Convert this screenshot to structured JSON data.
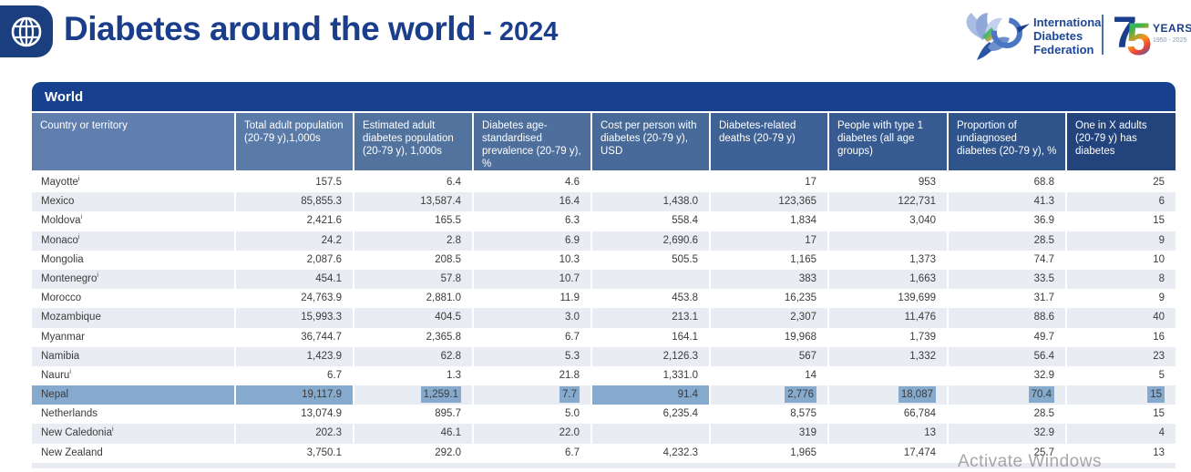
{
  "header": {
    "title": "Diabetes around the world",
    "year_suffix": "- 2024",
    "idf_logo": {
      "line1": "International",
      "line2": "Diabetes",
      "line3": "Federation"
    },
    "anniversary": {
      "number_7": "7",
      "number_5": "5",
      "label": "YEARS",
      "years": "1950 - 2025"
    }
  },
  "table": {
    "region_label": "World",
    "footnote_marker": "i",
    "columns": [
      "Country or territory",
      "Total adult population (20-79 y),1,000s",
      "Estimated adult diabetes population (20-79 y), 1,000s",
      "Diabetes age-standardised prevalence (20-79 y), %",
      "Cost per person with diabetes (20-79 y), USD",
      "Diabetes-related deaths (20-79 y)",
      "People with type 1 diabetes (all age groups)",
      "Proportion of undiagnosed diabetes (20-79 y), %",
      "One in X adults (20-79 y) has diabetes"
    ],
    "header_colors": [
      "#607fae",
      "#5a7aa8",
      "#53739f",
      "#4e6f9c",
      "#486a99",
      "#3e6295",
      "#375b90",
      "#2f548b",
      "#23437d"
    ],
    "highlight_pattern": [
      "full",
      "full",
      "text",
      "text",
      "full",
      "text",
      "text",
      "text",
      "text"
    ],
    "rows": [
      {
        "country": "Mayotte",
        "fn": true,
        "values": [
          "157.5",
          "6.4",
          "4.6",
          "",
          "17",
          "953",
          "68.8",
          "25"
        ]
      },
      {
        "country": "Mexico",
        "fn": false,
        "values": [
          "85,855.3",
          "13,587.4",
          "16.4",
          "1,438.0",
          "123,365",
          "122,731",
          "41.3",
          "6"
        ]
      },
      {
        "country": "Moldova",
        "fn": true,
        "values": [
          "2,421.6",
          "165.5",
          "6.3",
          "558.4",
          "1,834",
          "3,040",
          "36.9",
          "15"
        ]
      },
      {
        "country": "Monaco",
        "fn": true,
        "values": [
          "24.2",
          "2.8",
          "6.9",
          "2,690.6",
          "17",
          "",
          "28.5",
          "9"
        ]
      },
      {
        "country": "Mongolia",
        "fn": false,
        "values": [
          "2,087.6",
          "208.5",
          "10.3",
          "505.5",
          "1,165",
          "1,373",
          "74.7",
          "10"
        ]
      },
      {
        "country": "Montenegro",
        "fn": true,
        "values": [
          "454.1",
          "57.8",
          "10.7",
          "",
          "383",
          "1,663",
          "33.5",
          "8"
        ]
      },
      {
        "country": "Morocco",
        "fn": false,
        "values": [
          "24,763.9",
          "2,881.0",
          "11.9",
          "453.8",
          "16,235",
          "139,699",
          "31.7",
          "9"
        ]
      },
      {
        "country": "Mozambique",
        "fn": false,
        "values": [
          "15,993.3",
          "404.5",
          "3.0",
          "213.1",
          "2,307",
          "11,476",
          "88.6",
          "40"
        ]
      },
      {
        "country": "Myanmar",
        "fn": false,
        "values": [
          "36,744.7",
          "2,365.8",
          "6.7",
          "164.1",
          "19,968",
          "1,739",
          "49.7",
          "16"
        ]
      },
      {
        "country": "Namibia",
        "fn": false,
        "values": [
          "1,423.9",
          "62.8",
          "5.3",
          "2,126.3",
          "567",
          "1,332",
          "56.4",
          "23"
        ]
      },
      {
        "country": "Nauru",
        "fn": true,
        "values": [
          "6.7",
          "1.3",
          "21.8",
          "1,331.0",
          "14",
          "",
          "32.9",
          "5"
        ]
      },
      {
        "country": "Nepal",
        "fn": false,
        "highlighted": true,
        "values": [
          "19,117.9",
          "1,259.1",
          "7.7",
          "91.4",
          "2,776",
          "18,087",
          "70.4",
          "15"
        ]
      },
      {
        "country": "Netherlands",
        "fn": false,
        "values": [
          "13,074.9",
          "895.7",
          "5.0",
          "6,235.4",
          "8,575",
          "66,784",
          "28.5",
          "15"
        ]
      },
      {
        "country": "New Caledonia",
        "fn": true,
        "values": [
          "202.3",
          "46.1",
          "22.0",
          "",
          "319",
          "13",
          "32.9",
          "4"
        ]
      },
      {
        "country": "New Zealand",
        "fn": false,
        "values": [
          "3,750.1",
          "292.0",
          "6.7",
          "4,232.3",
          "1,965",
          "17,474",
          "25.7",
          "13"
        ]
      }
    ]
  },
  "watermark": "Activate Windows",
  "colors": {
    "title_navy": "#1b3e8c",
    "world_bar": "#17418f",
    "row_alt": "#e9ecf2",
    "selection_highlight": "#85aacd",
    "idf_blue": "#1d4796"
  }
}
